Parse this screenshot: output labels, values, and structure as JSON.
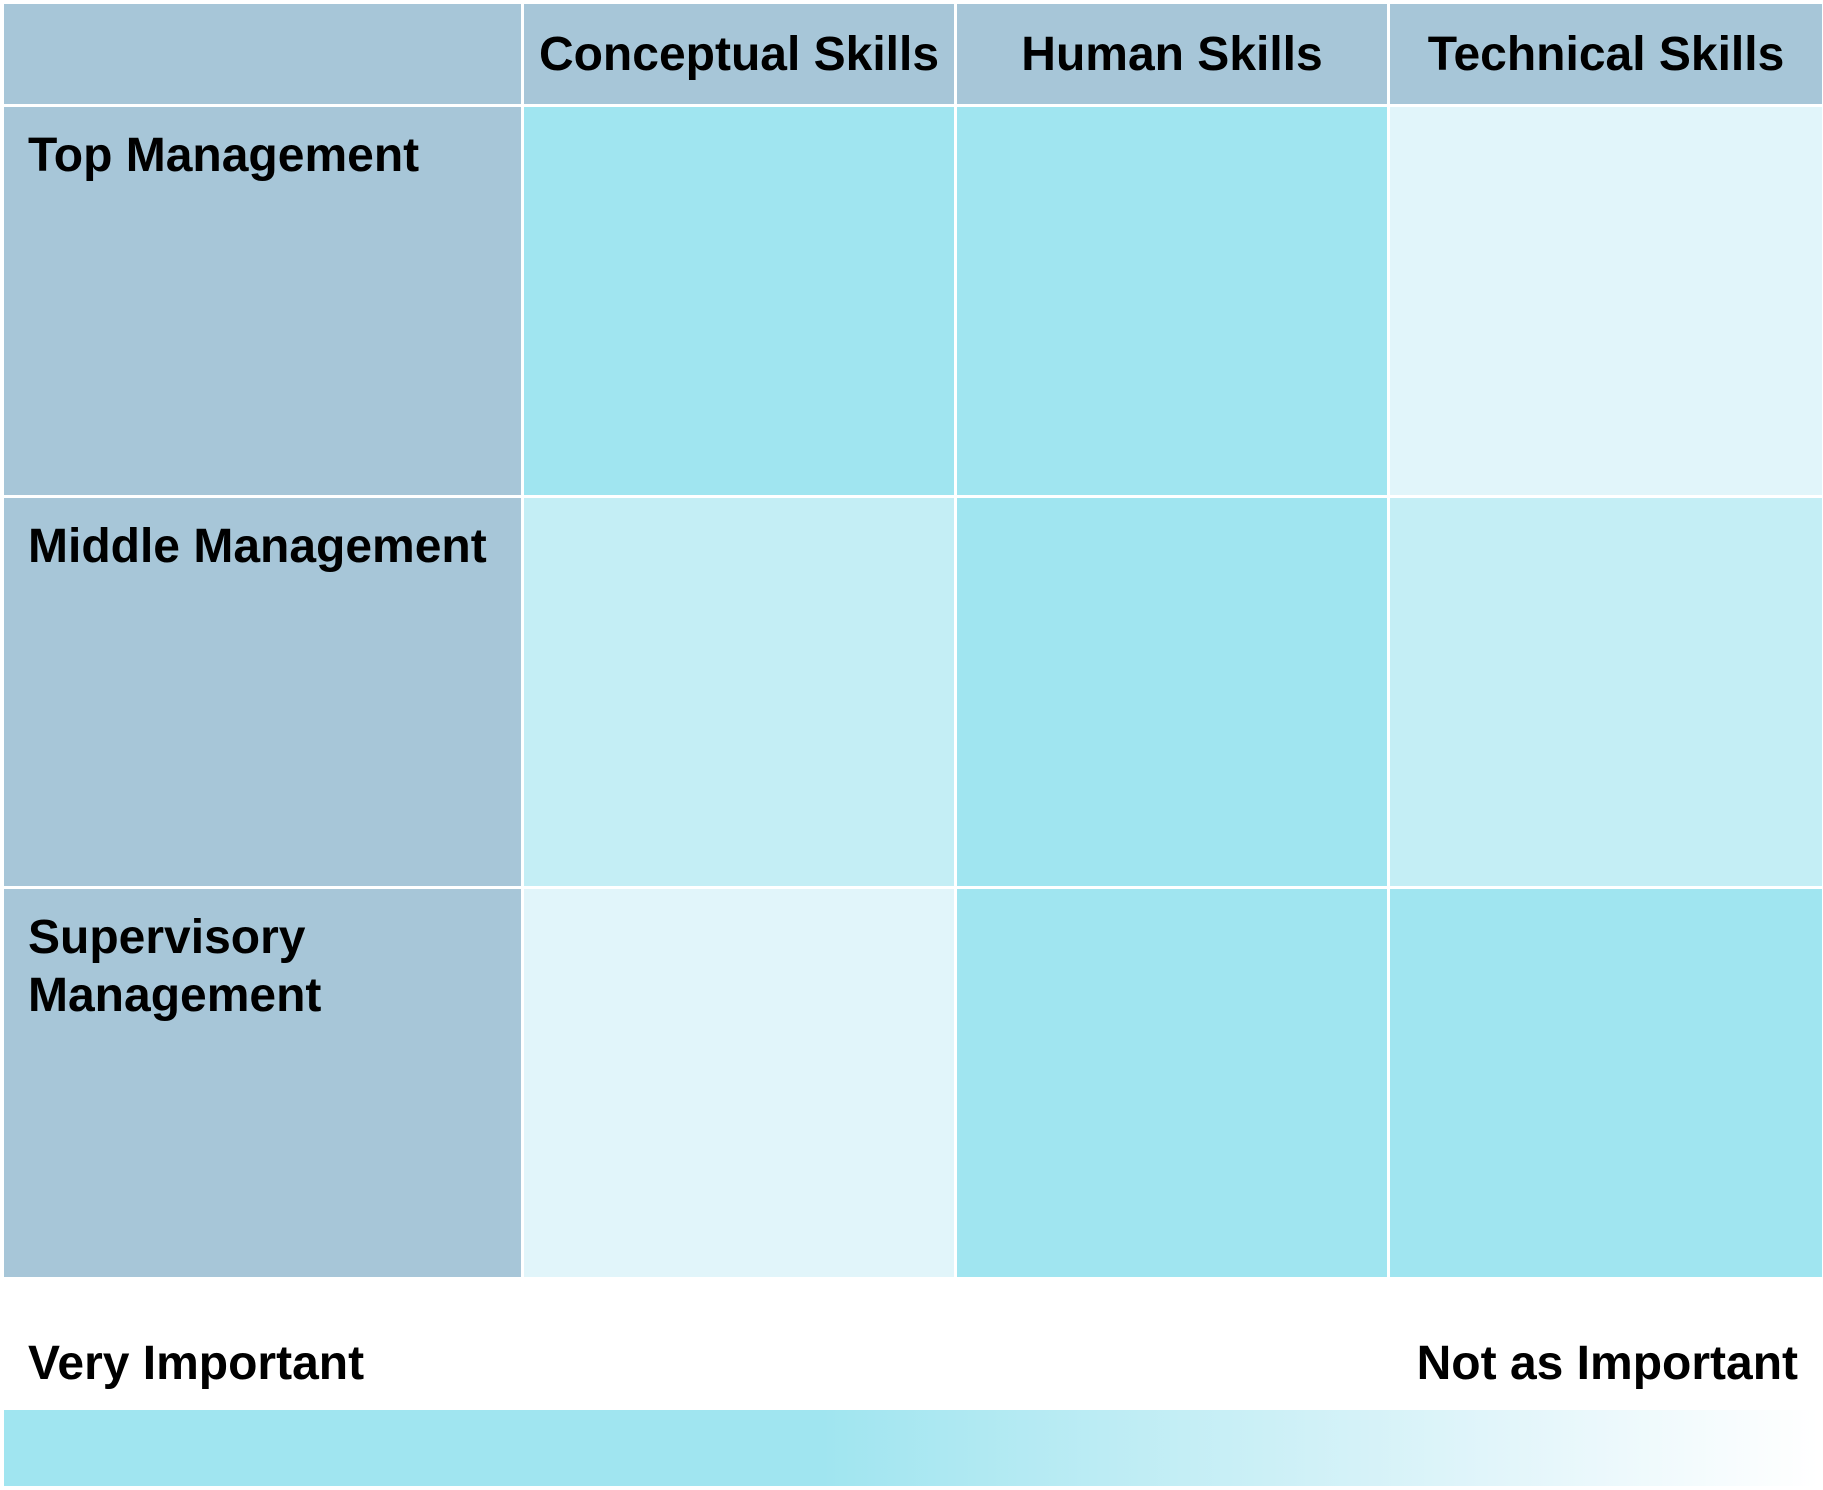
{
  "matrix": {
    "columns": [
      "Conceptual Skills",
      "Human Skills",
      "Technical Skills"
    ],
    "rows": [
      {
        "label": "Top Management",
        "levels": [
          "very-important",
          "very-important",
          "not-as-important"
        ]
      },
      {
        "label": "Middle Management",
        "levels": [
          "moderately-important",
          "very-important",
          "moderately-important"
        ]
      },
      {
        "label": "Supervisory Management",
        "levels": [
          "not-as-important",
          "very-important",
          "very-important"
        ]
      }
    ]
  },
  "legend": {
    "left_label": "Very Important",
    "right_label": "Not as Important"
  },
  "colors": {
    "header_background": "#a7c6d8",
    "very_important": "#a0e5f0",
    "moderately_important": "#c4eef5",
    "not_as_important": "#e1f5fa",
    "gradient_end": "#ffffff"
  }
}
